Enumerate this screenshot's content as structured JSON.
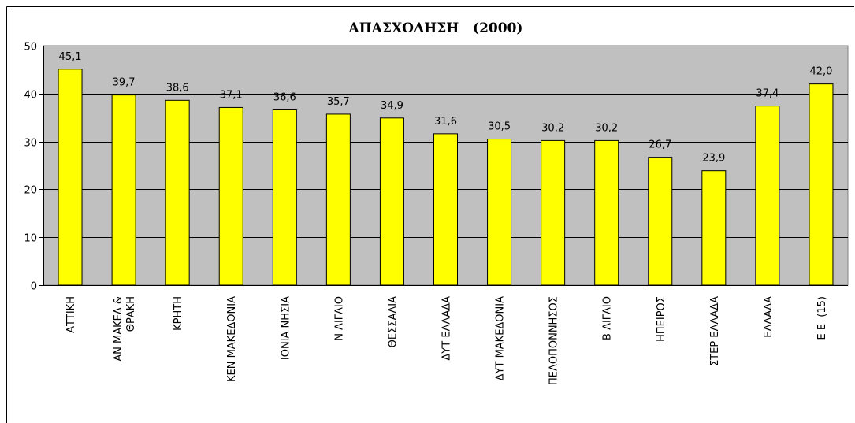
{
  "chart_data": {
    "type": "bar",
    "title": "ΑΠΑΣΧΟΛΗΣΗ   (2000)",
    "categories": [
      [
        "ΑΤΤΙΚΗ"
      ],
      [
        "ΑΝ ΜΑΚΕΔ &",
        "ΘΡΑΚΗ"
      ],
      [
        "ΚΡΗΤΗ"
      ],
      [
        "ΚΕΝ ΜΑΚΕΔΟΝΙΑ"
      ],
      [
        "ΙΟΝΙΑ ΝΗΣΙΑ"
      ],
      [
        "Ν ΑΙΓΑΙΟ"
      ],
      [
        "ΘΕΣΣΑΛΙΑ"
      ],
      [
        "ΔΥΤ ΕΛΛΑΔΑ"
      ],
      [
        "ΔΥΤ ΜΑΚΕΔΟΝΙΑ"
      ],
      [
        "ΠΕΛΟΠΟΝΝΗΣΟΣ"
      ],
      [
        "Β ΑΙΓΑΙΟ"
      ],
      [
        "ΗΠΕΙΡΟΣ"
      ],
      [
        "ΣΤΕΡ ΕΛΛΑΔΑ"
      ],
      [
        "ΕΛΛΑΔΑ"
      ],
      [
        "Ε Ε  (15)"
      ]
    ],
    "values": [
      45.1,
      39.7,
      38.6,
      37.1,
      36.6,
      35.7,
      34.9,
      31.6,
      30.5,
      30.2,
      30.2,
      26.7,
      23.9,
      37.4,
      42.0
    ],
    "value_labels": [
      "45,1",
      "39,7",
      "38,6",
      "37,1",
      "36,6",
      "35,7",
      "34,9",
      "31,6",
      "30,5",
      "30,2",
      "30,2",
      "26,7",
      "23,9",
      "37,4",
      "42,0"
    ],
    "ylim": [
      0,
      50
    ],
    "yticks": [
      "0",
      "10",
      "20",
      "30",
      "40",
      "50"
    ],
    "grid": true,
    "colors": {
      "bar_fill": "#ffff00",
      "bar_stroke": "#000000",
      "plot_bg": "#c0c0c0",
      "gridline": "#000000"
    }
  }
}
